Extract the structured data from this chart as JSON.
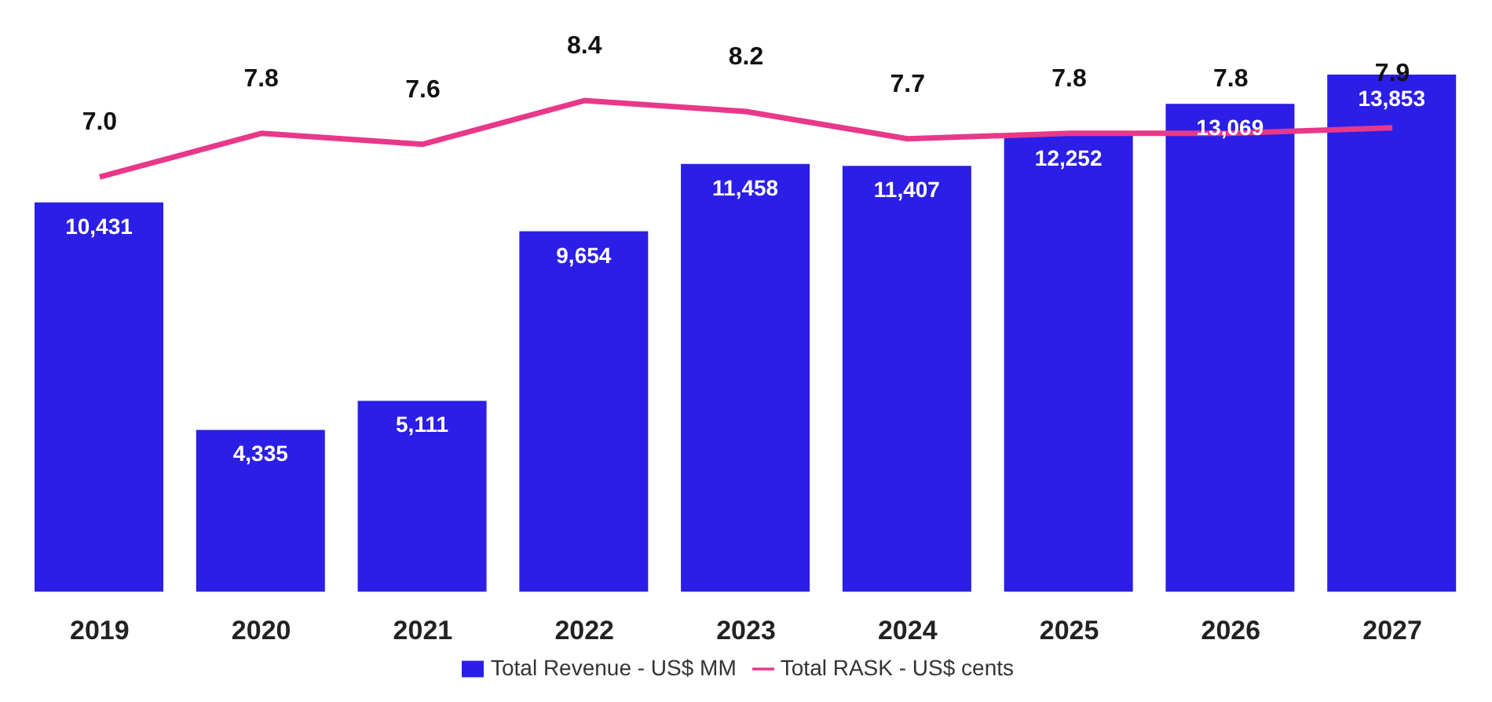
{
  "chart_data": {
    "type": "bar",
    "categories": [
      "2019",
      "2020",
      "2021",
      "2022",
      "2023",
      "2024",
      "2025",
      "2026",
      "2027"
    ],
    "series": [
      {
        "name": "Total Revenue - US$ MM",
        "color": "#2b1ee6",
        "values": [
          10431,
          4335,
          5111,
          9654,
          11458,
          11407,
          12252,
          13069,
          13853
        ],
        "value_labels": [
          "10,431",
          "4,335",
          "5,111",
          "9,654",
          "11,458",
          "11,407",
          "12,252",
          "13,069",
          "13,853"
        ]
      },
      {
        "name": "Total RASK - US$ cents",
        "type": "line",
        "axis": "y2",
        "color": "#e8388a",
        "values": [
          7.0,
          7.8,
          7.6,
          8.4,
          8.2,
          7.7,
          7.8,
          7.8,
          7.9
        ],
        "value_labels": [
          "7.0",
          "7.8",
          "7.6",
          "8.4",
          "8.2",
          "7.7",
          "7.8",
          "7.8",
          "7.9"
        ]
      }
    ],
    "data_labels": true,
    "legend": "bottom",
    "marker": "none"
  }
}
